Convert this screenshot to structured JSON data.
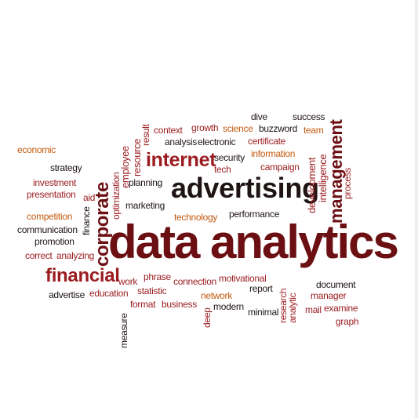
{
  "words": {
    "data_analytics": "data analytics",
    "advertising": "advertising",
    "internet": "internet",
    "financial": "financial",
    "corporate": "corporate",
    "management": "management",
    "economic": "economic",
    "strategy": "strategy",
    "investment": "investment",
    "presentation": "presentation",
    "aid": "aid",
    "competition": "competition",
    "communication": "communication",
    "promotion": "promotion",
    "correct": "correct",
    "analyzing": "analyzing",
    "finance": "finance",
    "optimization": "optimization",
    "employee": "employee",
    "resource": "resource",
    "result": "result",
    "context": "context",
    "growth": "growth",
    "science": "science",
    "analysis": "analysis",
    "electronic": "electronic",
    "dive": "dive",
    "success": "success",
    "buzzword": "buzzword",
    "team": "team",
    "certificate": "certificate",
    "information": "information",
    "campaign": "campaign",
    "security": "security",
    "tech": "tech",
    "planning": "planning",
    "marketing": "marketing",
    "technology": "technology",
    "performance": "performance",
    "development": "development",
    "intelligence": "intelligence",
    "process": "process",
    "work": "work",
    "phrase": "phrase",
    "connection": "connection",
    "motivational": "motivational",
    "report": "report",
    "document": "document",
    "manager": "manager",
    "advertise": "advertise",
    "education": "education",
    "statistic": "statistic",
    "network": "network",
    "format": "format",
    "business": "business",
    "measure": "measure",
    "deep": "deep",
    "modern": "modern",
    "minimal": "minimal",
    "research": "research",
    "analytic": "analytic",
    "mail": "mail",
    "examine": "examine",
    "graph": "graph"
  },
  "colors": {
    "dark": "#1f1414",
    "maroon": "#6b0f12",
    "red": "#9b1b1f",
    "orange": "#c45a10"
  }
}
